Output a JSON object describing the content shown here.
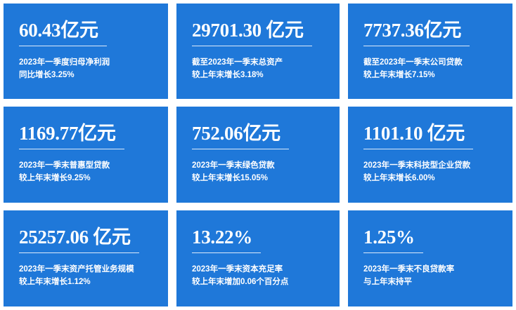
{
  "cards": [
    {
      "value": "60.43亿元",
      "lines": [
        "2023年一季度归母净利润",
        "同比增长3.25%"
      ]
    },
    {
      "value": "29701.30 亿元",
      "lines": [
        "截至2023年一季末总资产",
        "较上年末增长3.18%"
      ]
    },
    {
      "value": "7737.36亿元",
      "lines": [
        "截至2023年一季末公司贷款",
        "较上年末增长7.15%"
      ]
    },
    {
      "value": "1169.77亿元",
      "lines": [
        "2023年一季末普惠型贷款",
        "较上年末增长9.25%"
      ]
    },
    {
      "value": "752.06亿元",
      "lines": [
        "2023年一季末绿色贷款",
        "较上年末增长15.05%"
      ]
    },
    {
      "value": "1101.10 亿元",
      "lines": [
        "2023年一季末科技型企业贷款",
        "较上年末增长6.00%"
      ]
    },
    {
      "value": "25257.06 亿元",
      "lines": [
        "2023年一季末资产托管业务规模",
        "较上年末增长1.12%"
      ]
    },
    {
      "value": "13.22%",
      "lines": [
        "2023年一季末资本充足率",
        "较上年末增加0.06个百分点"
      ]
    },
    {
      "value": "1.25%",
      "lines": [
        "2023年一季末不良贷款率",
        "与上年末持平"
      ]
    }
  ]
}
